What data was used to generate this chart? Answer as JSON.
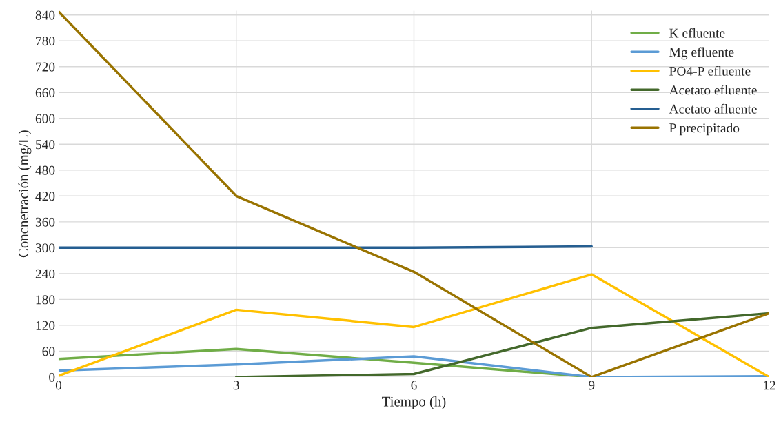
{
  "chart_data": {
    "type": "line",
    "xlabel": "Tiempo (h)",
    "ylabel": "Concnetración (mg/L)",
    "x": [
      0,
      3,
      6,
      9,
      12
    ],
    "series": [
      {
        "name": "K efluente",
        "color": "#70ad47",
        "values": [
          42,
          65,
          33,
          0,
          null
        ]
      },
      {
        "name": "Mg efluente",
        "color": "#5b9bd5",
        "values": [
          15,
          29,
          48,
          0,
          2
        ]
      },
      {
        "name": "PO4-P efluente",
        "color": "#ffc000",
        "values": [
          3,
          156,
          116,
          238,
          0
        ]
      },
      {
        "name": "Acetato efluente",
        "color": "#43682b",
        "values": [
          null,
          0,
          7,
          114,
          148
        ]
      },
      {
        "name": "Acetato afluente",
        "color": "#255e91",
        "values": [
          300,
          300,
          300,
          303,
          null
        ]
      },
      {
        "name": "P precipitado",
        "color": "#997300",
        "values": [
          848,
          420,
          244,
          0,
          148
        ]
      }
    ],
    "xlim": [
      0,
      12
    ],
    "xticks": [
      0,
      3,
      6,
      9,
      12
    ],
    "ylim": [
      0,
      850
    ],
    "yticks": [
      0,
      60,
      120,
      180,
      240,
      300,
      360,
      420,
      480,
      540,
      600,
      660,
      720,
      780,
      840
    ],
    "grid": true,
    "legend": "top right",
    "marker": "none",
    "line_style": "solid"
  }
}
